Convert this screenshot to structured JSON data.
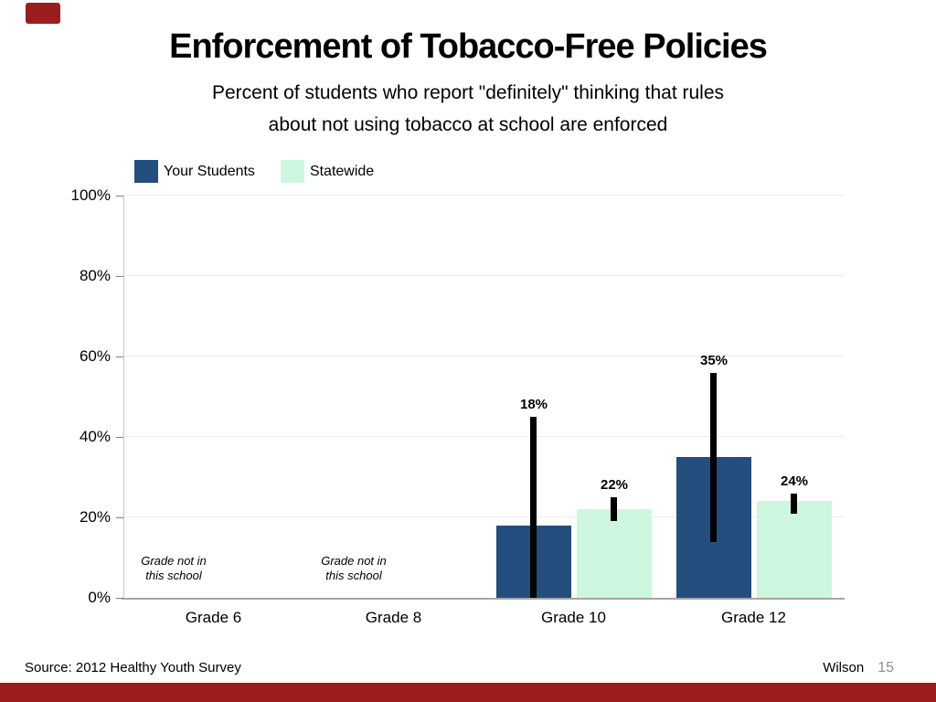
{
  "page": {
    "accent_color": "#9B1D1D",
    "footer": {
      "source": "Source: 2012 Healthy Youth Survey",
      "author": "Wilson",
      "slide_number": "15"
    }
  },
  "chart_data": {
    "type": "bar",
    "title": "Enforcement of Tobacco-Free Policies",
    "subtitle_lines": [
      "Percent of students who report \"definitely\" thinking that rules",
      "about not using tobacco at school are enforced"
    ],
    "categories": [
      "Grade 6",
      "Grade 8",
      "Grade 10",
      "Grade 12"
    ],
    "series": [
      {
        "name": "Your Students",
        "color": "#234E7D",
        "values": [
          null,
          null,
          18,
          35
        ],
        "labels": [
          null,
          null,
          "18%",
          "35%"
        ],
        "error_low": [
          null,
          null,
          0,
          14
        ],
        "error_high": [
          null,
          null,
          45,
          56
        ]
      },
      {
        "name": "Statewide",
        "color": "#CCF7DE",
        "values": [
          null,
          null,
          22,
          24
        ],
        "labels": [
          null,
          null,
          "22%",
          "24%"
        ],
        "error_low": [
          null,
          null,
          19,
          21
        ],
        "error_high": [
          null,
          null,
          25,
          26
        ]
      }
    ],
    "missing_categories": [
      0,
      1
    ],
    "missing_note_lines": [
      "Grade not in",
      "this school"
    ],
    "xlabel": "",
    "ylabel": "",
    "ylim": [
      0,
      100
    ],
    "yticks": [
      0,
      20,
      40,
      60,
      80,
      100
    ],
    "ytick_labels": [
      "0%",
      "20%",
      "40%",
      "60%",
      "80%",
      "100%"
    ],
    "grid": true,
    "legend_position": "top-left",
    "error_bar_color": "#000000"
  }
}
